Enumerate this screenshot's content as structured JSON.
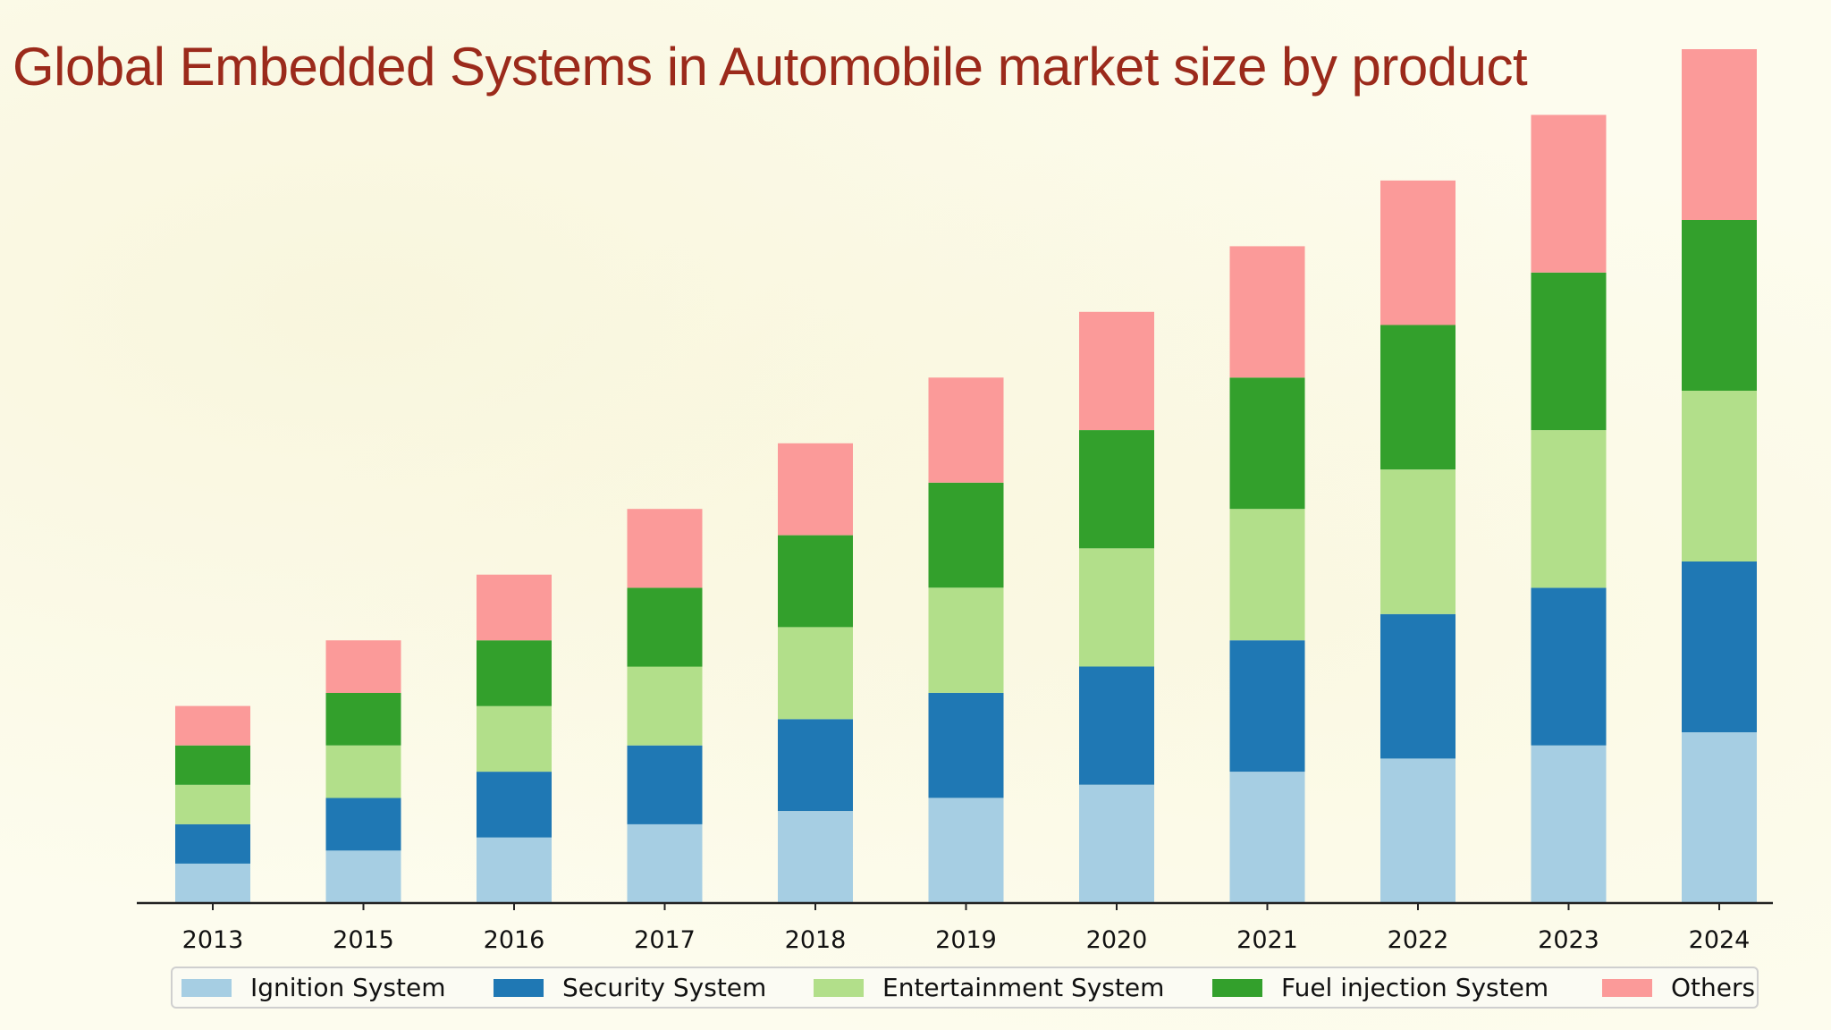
{
  "title": "Global Embedded Systems in Automobile market size by product",
  "chart_data": {
    "type": "bar",
    "stacked": true,
    "categories": [
      "2013",
      "2015",
      "2016",
      "2017",
      "2018",
      "2019",
      "2020",
      "2021",
      "2022",
      "2023",
      "2024"
    ],
    "series": [
      {
        "name": "Ignition System",
        "color": "#a6cee3",
        "values": [
          3.0,
          4.0,
          5.0,
          6.0,
          7.0,
          8.0,
          9.0,
          10.0,
          11.0,
          12.0,
          13.0
        ]
      },
      {
        "name": "Security System",
        "color": "#1f78b4",
        "values": [
          3.0,
          4.0,
          5.0,
          6.0,
          7.0,
          8.0,
          9.0,
          10.0,
          11.0,
          12.0,
          13.0
        ]
      },
      {
        "name": "Entertainment System",
        "color": "#b2df8a",
        "values": [
          3.0,
          4.0,
          5.0,
          6.0,
          7.0,
          8.0,
          9.0,
          10.0,
          11.0,
          12.0,
          13.0
        ]
      },
      {
        "name": "Fuel injection System",
        "color": "#33a02c",
        "values": [
          3.0,
          4.0,
          5.0,
          6.0,
          7.0,
          8.0,
          9.0,
          10.0,
          11.0,
          12.0,
          13.0
        ]
      },
      {
        "name": "Others",
        "color": "#fb9a99",
        "values": [
          3.0,
          4.0,
          5.0,
          6.0,
          7.0,
          8.0,
          9.0,
          10.0,
          11.0,
          12.0,
          13.0
        ]
      }
    ],
    "ylim": [
      0,
      65
    ],
    "yaxis_visible": false,
    "grid": false,
    "legend_position": "bottom"
  }
}
